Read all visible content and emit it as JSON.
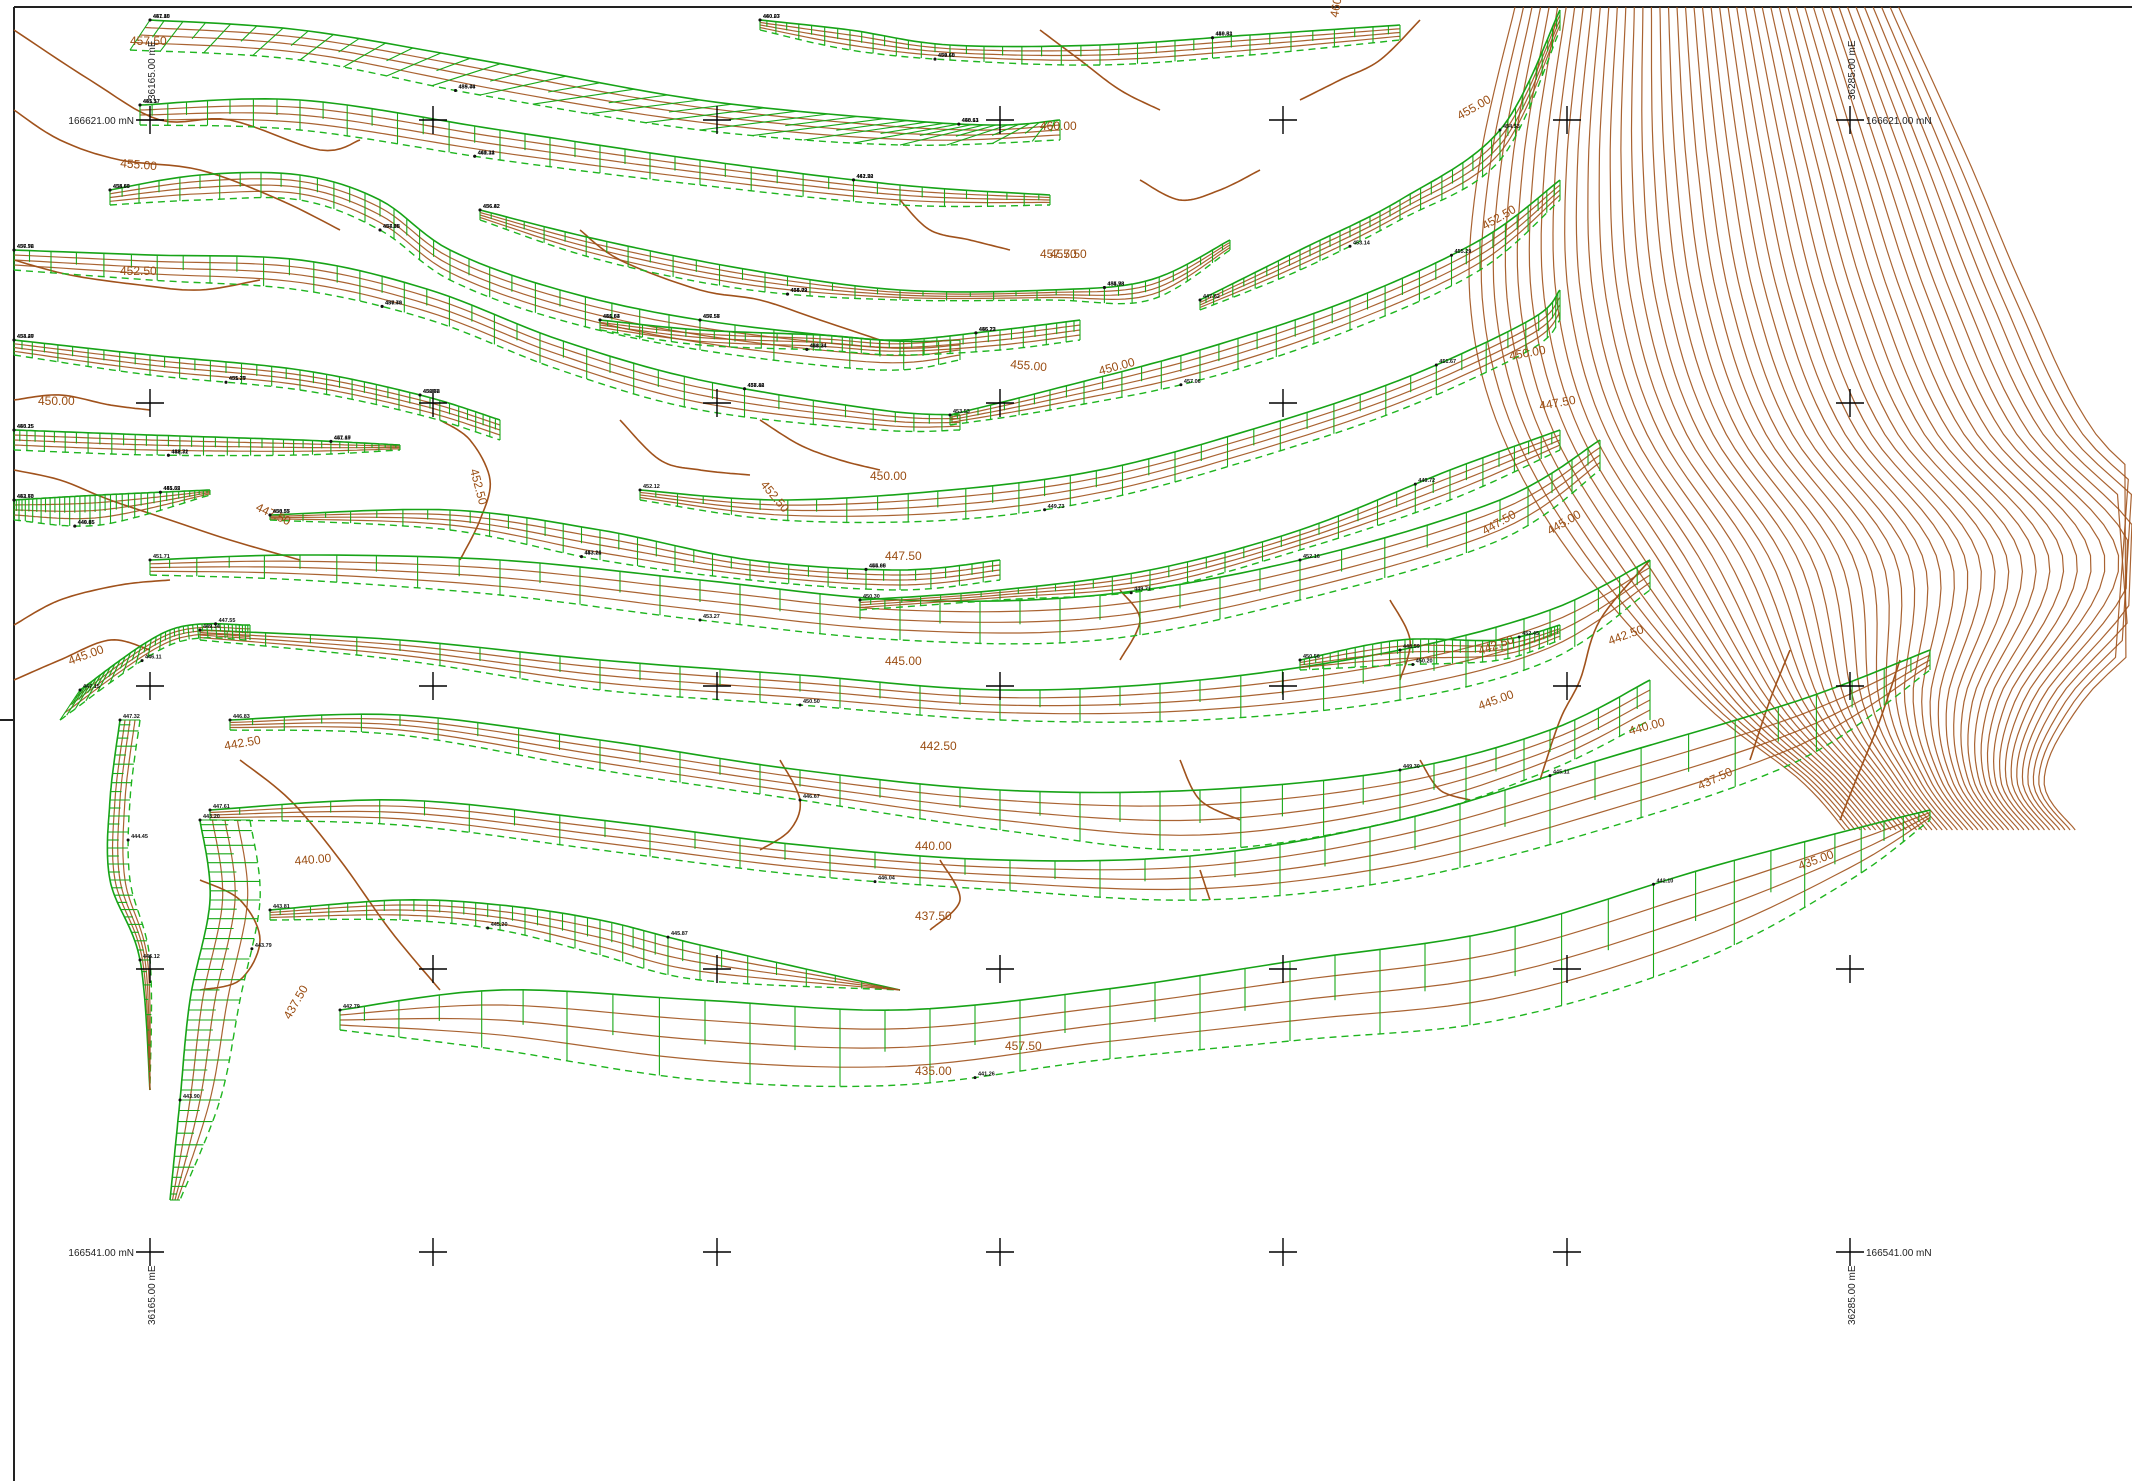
{
  "colors": {
    "contour": "#a0521c",
    "bench": "#17a317",
    "grid": "#000000",
    "background": "#ffffff"
  },
  "grid": {
    "northing_labels": [
      {
        "id": "n-top-left",
        "text": "166621.00 mN"
      },
      {
        "id": "n-top-right",
        "text": "166621.00 mN"
      },
      {
        "id": "n-bottom-left",
        "text": "166541.00 mN"
      },
      {
        "id": "n-bottom-right",
        "text": "166541.00 mN"
      }
    ],
    "easting_labels": [
      {
        "id": "e-top-left",
        "text": "36165.00 mE"
      },
      {
        "id": "e-top-right",
        "text": "36285.00 mE"
      },
      {
        "id": "e-bottom-left",
        "text": "36165.00 mE"
      },
      {
        "id": "e-bottom-right",
        "text": "36285.00 mE"
      }
    ]
  },
  "contour_labels": [
    "457.50",
    "455.00",
    "452.50",
    "450.00",
    "447.50",
    "445.00",
    "460.00",
    "460.00",
    "457.50",
    "455.00",
    "452.50",
    "450.00",
    "447.50",
    "445.00",
    "442.50",
    "440.00",
    "437.50",
    "435.00",
    "457.50",
    "455.00",
    "452.50",
    "450.00",
    "447.50",
    "445.00",
    "442.50",
    "440.00",
    "437.50",
    "435.00",
    "442.50",
    "440.00",
    "437.50",
    "457.50",
    "452.50",
    "450.00",
    "447.50",
    "445.00",
    "442.50"
  ],
  "spot_heights": [
    "457.80",
    "458.13",
    "455.74",
    "455.57",
    "461.22",
    "461.14",
    "460.03",
    "459.53",
    "459.60",
    "454.83",
    "456.57",
    "454.75",
    "456.76",
    "458.12",
    "456.43",
    "456.82",
    "455.78",
    "455.79",
    "454.40",
    "456.88",
    "455.77",
    "455.15",
    "457.69",
    "458.71",
    "456.84",
    "455.73",
    "458.24",
    "452.63",
    "451.62",
    "449.65",
    "450.55",
    "455.05",
    "453.21",
    "453.53",
    "455.29",
    "457.06",
    "452.12",
    "451.67",
    "449.73",
    "447.62",
    "454.53",
    "453.14",
    "451.71",
    "452.16",
    "453.27",
    "450.30",
    "449.72",
    "449.71",
    "449.34",
    "448.59",
    "450.50",
    "450.56",
    "452.45",
    "450.20",
    "447.15",
    "447.55",
    "446.11",
    "446.83",
    "449.30",
    "446.67",
    "447.61",
    "445.11",
    "446.04",
    "447.32",
    "446.12",
    "444.45",
    "443.20",
    "443.90",
    "443.79",
    "443.81",
    "445.87",
    "445.20",
    "442.79",
    "442.10",
    "441.26",
    "441.15",
    "440.61",
    "439.46",
    "441.17",
    "442.50",
    "440.32",
    "440.27",
    "440.81",
    "438.65",
    "438.60",
    "437.58",
    "437.88",
    "437.92",
    "437.46",
    "437.70",
    "436.42",
    "434.98",
    "434.02",
    "433.27",
    "432.72",
    "431.29",
    "440.25",
    "441.17",
    "442.32",
    "441.63",
    "446.22",
    "444.34",
    "443.70",
    "445.35",
    "446.85",
    "438.37",
    "444.60",
    "443.14"
  ]
}
